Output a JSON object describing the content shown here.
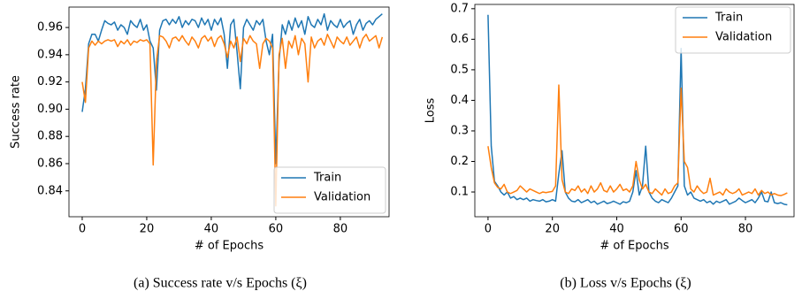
{
  "chart_data": [
    {
      "type": "line",
      "ylabel": "Success rate",
      "xlabel": "# of Epochs",
      "caption": "(a) Success rate v/s Epochs (ξ)",
      "legend": "lower right",
      "xlim": [
        -4.1,
        95.1
      ],
      "xticks": [
        0,
        20,
        40,
        60,
        80
      ],
      "ylim": [
        0.821,
        0.975
      ],
      "yticks": [
        0.84,
        0.86,
        0.88,
        {
          "value": 0.9,
          "label": "0.90"
        },
        0.92,
        0.94,
        0.96
      ],
      "x": [
        0,
        1,
        2,
        3,
        4,
        5,
        6,
        7,
        8,
        9,
        10,
        11,
        12,
        13,
        14,
        15,
        16,
        17,
        18,
        19,
        20,
        21,
        22,
        23,
        24,
        25,
        26,
        27,
        28,
        29,
        30,
        31,
        32,
        33,
        34,
        35,
        36,
        37,
        38,
        39,
        40,
        41,
        42,
        43,
        44,
        45,
        46,
        47,
        48,
        49,
        50,
        51,
        52,
        53,
        54,
        55,
        56,
        57,
        58,
        59,
        60,
        61,
        62,
        63,
        64,
        65,
        66,
        67,
        68,
        69,
        70,
        71,
        72,
        73,
        74,
        75,
        76,
        77,
        78,
        79,
        80,
        81,
        82,
        83,
        84,
        85,
        86,
        87,
        88,
        89,
        90,
        91,
        92,
        93
      ],
      "series": [
        {
          "name": "Train",
          "color": "#1f77b4",
          "values": [
            0.898,
            0.915,
            0.948,
            0.955,
            0.955,
            0.95,
            0.958,
            0.965,
            0.963,
            0.962,
            0.964,
            0.958,
            0.962,
            0.96,
            0.955,
            0.965,
            0.962,
            0.96,
            0.966,
            0.958,
            0.962,
            0.95,
            0.945,
            0.914,
            0.958,
            0.965,
            0.966,
            0.962,
            0.966,
            0.963,
            0.968,
            0.96,
            0.965,
            0.962,
            0.966,
            0.965,
            0.96,
            0.967,
            0.962,
            0.966,
            0.958,
            0.966,
            0.962,
            0.967,
            0.955,
            0.93,
            0.962,
            0.966,
            0.942,
            0.915,
            0.96,
            0.966,
            0.962,
            0.958,
            0.965,
            0.962,
            0.966,
            0.95,
            0.94,
            0.955,
            0.86,
            0.935,
            0.962,
            0.955,
            0.965,
            0.958,
            0.967,
            0.96,
            0.965,
            0.955,
            0.968,
            0.962,
            0.96,
            0.966,
            0.962,
            0.97,
            0.958,
            0.965,
            0.962,
            0.96,
            0.966,
            0.96,
            0.963,
            0.965,
            0.955,
            0.962,
            0.966,
            0.958,
            0.963,
            0.965,
            0.962,
            0.966,
            0.968,
            0.97
          ]
        },
        {
          "name": "Validation",
          "color": "#ff7f0e",
          "values": [
            0.92,
            0.905,
            0.945,
            0.95,
            0.947,
            0.95,
            0.948,
            0.95,
            0.951,
            0.95,
            0.951,
            0.946,
            0.95,
            0.948,
            0.951,
            0.947,
            0.95,
            0.949,
            0.951,
            0.95,
            0.951,
            0.948,
            0.859,
            0.935,
            0.954,
            0.953,
            0.95,
            0.945,
            0.952,
            0.953,
            0.95,
            0.954,
            0.95,
            0.947,
            0.953,
            0.95,
            0.945,
            0.952,
            0.954,
            0.95,
            0.953,
            0.946,
            0.952,
            0.954,
            0.948,
            0.938,
            0.95,
            0.945,
            0.953,
            0.935,
            0.952,
            0.948,
            0.954,
            0.95,
            0.948,
            0.93,
            0.948,
            0.952,
            0.95,
            0.945,
            0.829,
            0.94,
            0.952,
            0.93,
            0.95,
            0.945,
            0.954,
            0.94,
            0.952,
            0.948,
            0.92,
            0.953,
            0.945,
            0.95,
            0.952,
            0.947,
            0.955,
            0.95,
            0.945,
            0.953,
            0.95,
            0.948,
            0.953,
            0.947,
            0.95,
            0.953,
            0.945,
            0.952,
            0.955,
            0.95,
            0.952,
            0.954,
            0.945,
            0.953
          ]
        }
      ]
    },
    {
      "type": "line",
      "ylabel": "Loss",
      "xlabel": "# of Epochs",
      "caption": "(b) Loss v/s Epochs (ξ)",
      "legend": "upper right",
      "xlim": [
        -4.1,
        95.1
      ],
      "xticks": [
        0,
        20,
        40,
        60,
        80
      ],
      "ylim": [
        0.019,
        0.714
      ],
      "yticks": [
        0.1,
        0.2,
        0.3,
        0.4,
        0.5,
        0.6,
        0.7
      ],
      "x": [
        0,
        1,
        2,
        3,
        4,
        5,
        6,
        7,
        8,
        9,
        10,
        11,
        12,
        13,
        14,
        15,
        16,
        17,
        18,
        19,
        20,
        21,
        22,
        23,
        24,
        25,
        26,
        27,
        28,
        29,
        30,
        31,
        32,
        33,
        34,
        35,
        36,
        37,
        38,
        39,
        40,
        41,
        42,
        43,
        44,
        45,
        46,
        47,
        48,
        49,
        50,
        51,
        52,
        53,
        54,
        55,
        56,
        57,
        58,
        59,
        60,
        61,
        62,
        63,
        64,
        65,
        66,
        67,
        68,
        69,
        70,
        71,
        72,
        73,
        74,
        75,
        76,
        77,
        78,
        79,
        80,
        81,
        82,
        83,
        84,
        85,
        86,
        87,
        88,
        89,
        90,
        91,
        92,
        93
      ],
      "series": [
        {
          "name": "Train",
          "color": "#1f77b4",
          "values": [
            0.68,
            0.25,
            0.135,
            0.12,
            0.1,
            0.09,
            0.1,
            0.08,
            0.085,
            0.075,
            0.08,
            0.075,
            0.08,
            0.07,
            0.075,
            0.072,
            0.07,
            0.075,
            0.068,
            0.07,
            0.075,
            0.07,
            0.16,
            0.235,
            0.1,
            0.08,
            0.07,
            0.068,
            0.075,
            0.065,
            0.07,
            0.075,
            0.065,
            0.07,
            0.06,
            0.065,
            0.07,
            0.062,
            0.065,
            0.07,
            0.065,
            0.06,
            0.068,
            0.065,
            0.07,
            0.1,
            0.17,
            0.09,
            0.12,
            0.25,
            0.1,
            0.08,
            0.07,
            0.065,
            0.075,
            0.07,
            0.065,
            0.08,
            0.1,
            0.12,
            0.57,
            0.12,
            0.09,
            0.1,
            0.08,
            0.075,
            0.07,
            0.075,
            0.065,
            0.07,
            0.06,
            0.07,
            0.065,
            0.07,
            0.075,
            0.06,
            0.065,
            0.07,
            0.08,
            0.072,
            0.065,
            0.07,
            0.075,
            0.065,
            0.08,
            0.1,
            0.07,
            0.068,
            0.1,
            0.065,
            0.062,
            0.065,
            0.06,
            0.058
          ]
        },
        {
          "name": "Validation",
          "color": "#ff7f0e",
          "values": [
            0.25,
            0.18,
            0.13,
            0.115,
            0.11,
            0.125,
            0.1,
            0.095,
            0.1,
            0.105,
            0.12,
            0.11,
            0.1,
            0.11,
            0.105,
            0.1,
            0.095,
            0.1,
            0.098,
            0.1,
            0.102,
            0.12,
            0.45,
            0.14,
            0.1,
            0.095,
            0.11,
            0.105,
            0.12,
            0.1,
            0.11,
            0.095,
            0.12,
            0.1,
            0.11,
            0.13,
            0.105,
            0.1,
            0.12,
            0.1,
            0.11,
            0.125,
            0.105,
            0.11,
            0.1,
            0.12,
            0.2,
            0.14,
            0.11,
            0.125,
            0.1,
            0.095,
            0.11,
            0.1,
            0.09,
            0.11,
            0.095,
            0.1,
            0.12,
            0.13,
            0.44,
            0.2,
            0.18,
            0.11,
            0.1,
            0.12,
            0.105,
            0.095,
            0.1,
            0.145,
            0.09,
            0.095,
            0.1,
            0.09,
            0.11,
            0.1,
            0.095,
            0.1,
            0.11,
            0.09,
            0.095,
            0.1,
            0.095,
            0.11,
            0.09,
            0.105,
            0.095,
            0.1,
            0.09,
            0.095,
            0.09,
            0.088,
            0.092,
            0.097
          ]
        }
      ]
    }
  ]
}
